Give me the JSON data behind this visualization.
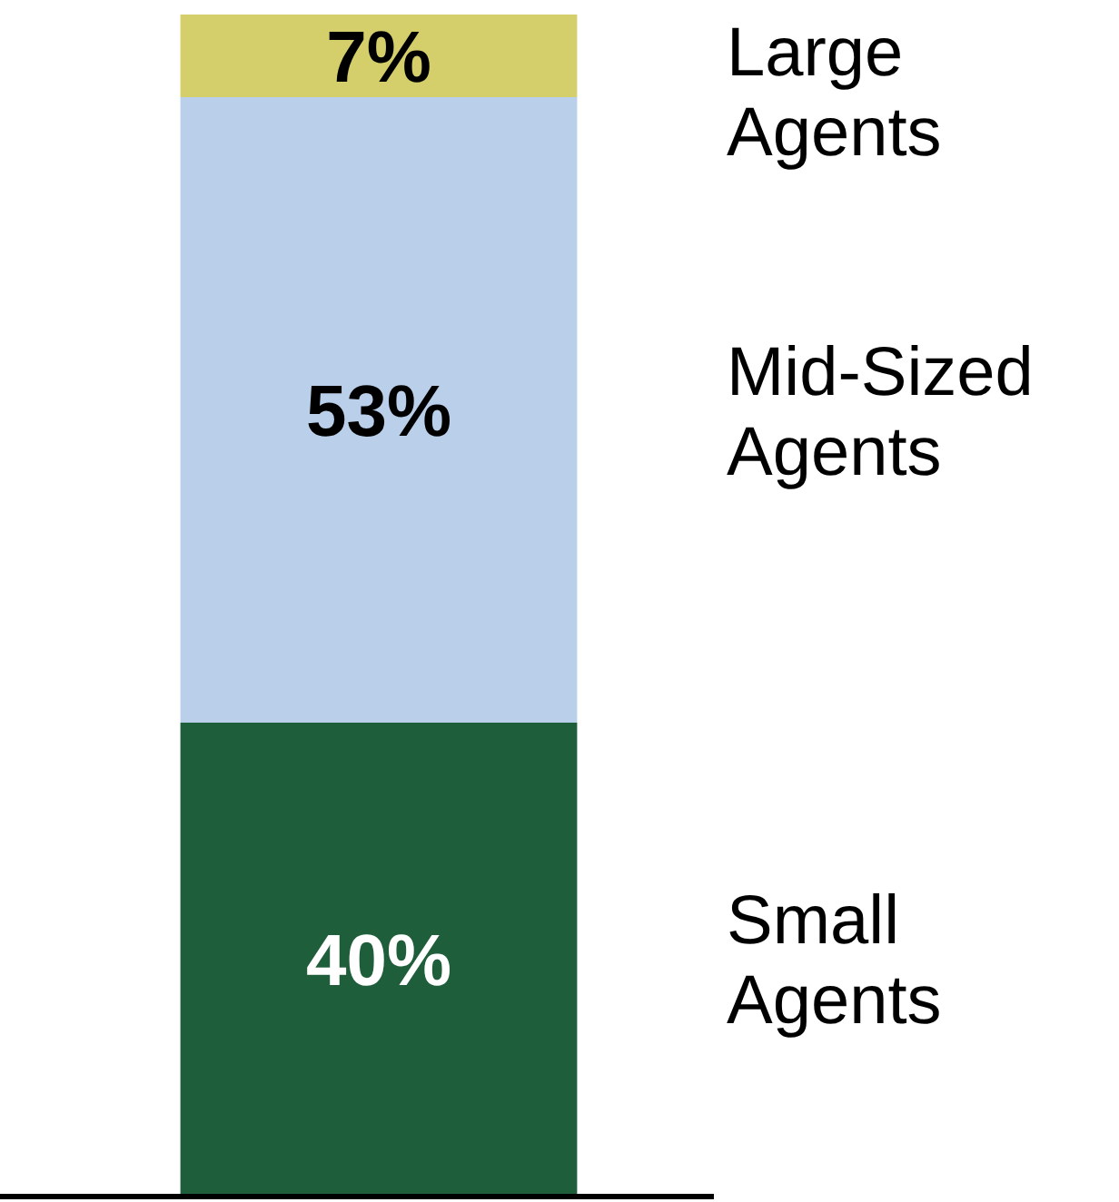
{
  "chart_data": {
    "type": "bar",
    "stacked": true,
    "categories": [
      null
    ],
    "series": [
      {
        "name": "Small Agents",
        "color": "#1e5e3a",
        "values": [
          40
        ],
        "value_labels": [
          "40%"
        ]
      },
      {
        "name": "Mid-Sized Agents",
        "color": "#b9cfea",
        "values": [
          53
        ],
        "value_labels": [
          "53%"
        ]
      },
      {
        "name": "Large Agents",
        "color": "#d4cf6a",
        "values": [
          7
        ],
        "value_labels": [
          "7%"
        ]
      }
    ]
  }
}
